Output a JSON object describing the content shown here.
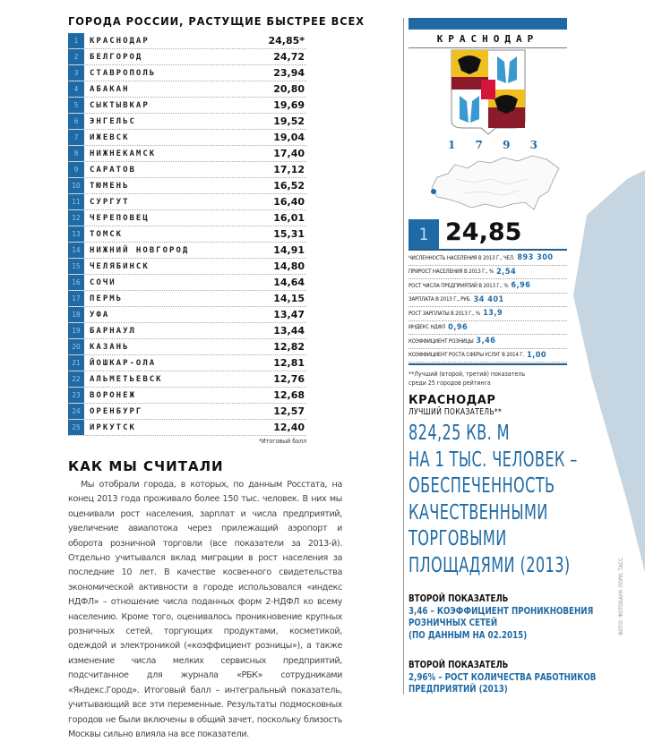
{
  "ranking": {
    "title": "ГОРОДА РОССИИ, РАСТУЩИЕ БЫСТРЕЕ ВСЕХ",
    "rows": [
      {
        "rank": "1",
        "city": "КРАСНОДАР",
        "score": "24,85*"
      },
      {
        "rank": "2",
        "city": "БЕЛГОРОД",
        "score": "24,72"
      },
      {
        "rank": "3",
        "city": "СТАВРОПОЛЬ",
        "score": "23,94"
      },
      {
        "rank": "4",
        "city": "АБАКАН",
        "score": "20,80"
      },
      {
        "rank": "5",
        "city": "СЫКТЫВКАР",
        "score": "19,69"
      },
      {
        "rank": "6",
        "city": "ЭНГЕЛЬС",
        "score": "19,52"
      },
      {
        "rank": "7",
        "city": "ИЖЕВСК",
        "score": "19,04"
      },
      {
        "rank": "8",
        "city": "НИЖНЕКАМСК",
        "score": "17,40"
      },
      {
        "rank": "9",
        "city": "САРАТОВ",
        "score": "17,12"
      },
      {
        "rank": "10",
        "city": "ТЮМЕНЬ",
        "score": "16,52"
      },
      {
        "rank": "11",
        "city": "СУРГУТ",
        "score": "16,40"
      },
      {
        "rank": "12",
        "city": "ЧЕРЕПОВЕЦ",
        "score": "16,01"
      },
      {
        "rank": "13",
        "city": "ТОМСК",
        "score": "15,31"
      },
      {
        "rank": "14",
        "city": "НИЖНИЙ НОВГОРОД",
        "score": "14,91"
      },
      {
        "rank": "15",
        "city": "ЧЕЛЯБИНСК",
        "score": "14,80"
      },
      {
        "rank": "16",
        "city": "СОЧИ",
        "score": "14,64"
      },
      {
        "rank": "17",
        "city": "ПЕРМЬ",
        "score": "14,15"
      },
      {
        "rank": "18",
        "city": "УФА",
        "score": "13,47"
      },
      {
        "rank": "19",
        "city": "БАРНАУЛ",
        "score": "13,44"
      },
      {
        "rank": "20",
        "city": "КАЗАНЬ",
        "score": "12,82"
      },
      {
        "rank": "21",
        "city": "ЙОШКАР-ОЛА",
        "score": "12,81"
      },
      {
        "rank": "22",
        "city": "АЛЬМЕТЬЕВСК",
        "score": "12,76"
      },
      {
        "rank": "23",
        "city": "ВОРОНЕЖ",
        "score": "12,68"
      },
      {
        "rank": "24",
        "city": "ОРЕНБУРГ",
        "score": "12,57"
      },
      {
        "rank": "25",
        "city": "ИРКУТСК",
        "score": "12,40"
      }
    ],
    "footnote": "*Итоговый балл"
  },
  "method": {
    "title": "КАК МЫ СЧИТАЛИ",
    "text": "Мы отобрали города, в которых, по данным Росстата, на конец 2013 года проживало более 150 тыс. человек. В них мы оценивали рост населения, зарплат и числа предприятий, увеличение авиапотока через прилежащий аэропорт и оборота розничной торговли (все показатели за 2013-й). Отдельно учитывался вклад миграции в рост населения за последние 10 лет. В качестве косвенного свидетельства экономической активности в городе использовался «индекс НДФЛ» – отношение числа поданных форм 2-НДФЛ ко всему населению. Кроме того, оценивалось проникновение крупных розничных сетей, торгующих продуктами, косметикой, одеждой и электроникой («коэффициент розницы»), а также изменение числа мелких сервисных предприятий, подсчитанное для журнала «РБК» сотрудниками «Яндекс.Город». Итоговый балл – интегральный показатель, учитывающий все эти переменные. Результаты подмосковных городов не были включены в общий зачет, поскольку близость Москвы сильно влияла на все показатели."
  },
  "profile": {
    "city": "КРАСНОДАР",
    "year_digits": [
      "1",
      "7",
      "9",
      "3"
    ],
    "rank": "1",
    "score": "24,85",
    "stats": [
      {
        "label": "ЧИСЛЕННОСТЬ НАСЕЛЕНИЯ В 2013 Г., ЧЕЛ.",
        "value": "893 300"
      },
      {
        "label": "ПРИРОСТ НАСЕЛЕНИЯ В 2013 Г., %",
        "value": "2,54"
      },
      {
        "label": "РОСТ ЧИСЛА ПРЕДПРИЯТИЙ В 2013 Г., %",
        "value": "6,96"
      },
      {
        "label": "ЗАРПЛАТА В 2013 Г., РУБ.",
        "value": "34 401"
      },
      {
        "label": "РОСТ ЗАРПЛАТЫ В 2013 Г., %",
        "value": "13,9"
      },
      {
        "label": "ИНДЕКС НДФЛ",
        "value": "0,96"
      },
      {
        "label": "КОЭФФИЦИЕНТ РОЗНИЦЫ",
        "value": "3,46"
      },
      {
        "label": "КОЭФФИЦИЕНТ РОСТА СФЕРЫ УСЛУГ В 2014 Г.",
        "value": "1,00"
      }
    ],
    "footnote_line1": "**Лучший (второй, третий) показатель",
    "footnote_line2": "среди 25 городов рейтинга",
    "highlight_city": "КРАСНОДАР",
    "best_label": "ЛУЧШИЙ ПОКАЗАТЕЛЬ**",
    "best_text": "824,25 КВ. М\nНА 1 ТЫС. ЧЕЛОВЕК –\nОБЕСПЕЧЕННОСТЬ\nКАЧЕСТВЕННЫМИ\nТОРГОВЫМИ\nПЛОЩАДЯМИ (2013)",
    "second": [
      {
        "label": "ВТОРОЙ ПОКАЗАТЕЛЬ",
        "text": "3,46 – КОЭФФИЦИЕНТ ПРОНИКНОВЕНИЯ\nРОЗНИЧНЫХ СЕТЕЙ\n(ПО ДАННЫМ НА 02.2015)"
      },
      {
        "label": "ВТОРОЙ ПОКАЗАТЕЛЬ",
        "text": "2,96% – РОСТ КОЛИЧЕСТВА РАБОТНИКОВ\nПРЕДПРИЯТИЙ (2013)"
      }
    ]
  },
  "photo_credit": "ФОТО: ФОТОБАНК ЛОРИ, ТАСС",
  "colors": {
    "accent": "#1f6aa5",
    "background_shape": "#c5d6e2"
  }
}
